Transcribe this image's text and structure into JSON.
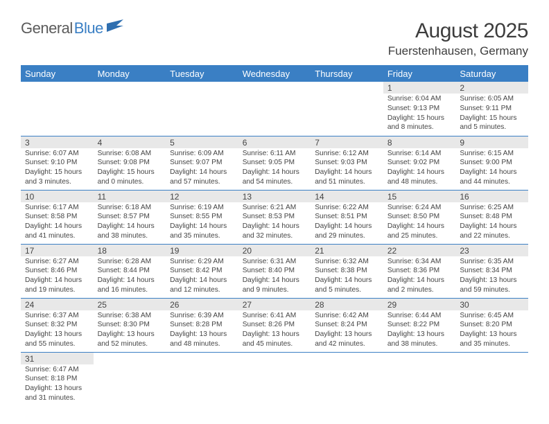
{
  "logo": {
    "text1": "General",
    "text2": "Blue"
  },
  "title": "August 2025",
  "location": "Fuerstenhausen, Germany",
  "colors": {
    "header_bg": "#3a7fc4",
    "header_text": "#ffffff",
    "daynum_bg": "#e8e8e8",
    "rule": "#3a7fc4",
    "body_text": "#444444"
  },
  "weekdays": [
    "Sunday",
    "Monday",
    "Tuesday",
    "Wednesday",
    "Thursday",
    "Friday",
    "Saturday"
  ],
  "weeks": [
    [
      {
        "n": "",
        "sr": "",
        "ss": "",
        "dl": ""
      },
      {
        "n": "",
        "sr": "",
        "ss": "",
        "dl": ""
      },
      {
        "n": "",
        "sr": "",
        "ss": "",
        "dl": ""
      },
      {
        "n": "",
        "sr": "",
        "ss": "",
        "dl": ""
      },
      {
        "n": "",
        "sr": "",
        "ss": "",
        "dl": ""
      },
      {
        "n": "1",
        "sr": "Sunrise: 6:04 AM",
        "ss": "Sunset: 9:13 PM",
        "dl": "Daylight: 15 hours and 8 minutes."
      },
      {
        "n": "2",
        "sr": "Sunrise: 6:05 AM",
        "ss": "Sunset: 9:11 PM",
        "dl": "Daylight: 15 hours and 5 minutes."
      }
    ],
    [
      {
        "n": "3",
        "sr": "Sunrise: 6:07 AM",
        "ss": "Sunset: 9:10 PM",
        "dl": "Daylight: 15 hours and 3 minutes."
      },
      {
        "n": "4",
        "sr": "Sunrise: 6:08 AM",
        "ss": "Sunset: 9:08 PM",
        "dl": "Daylight: 15 hours and 0 minutes."
      },
      {
        "n": "5",
        "sr": "Sunrise: 6:09 AM",
        "ss": "Sunset: 9:07 PM",
        "dl": "Daylight: 14 hours and 57 minutes."
      },
      {
        "n": "6",
        "sr": "Sunrise: 6:11 AM",
        "ss": "Sunset: 9:05 PM",
        "dl": "Daylight: 14 hours and 54 minutes."
      },
      {
        "n": "7",
        "sr": "Sunrise: 6:12 AM",
        "ss": "Sunset: 9:03 PM",
        "dl": "Daylight: 14 hours and 51 minutes."
      },
      {
        "n": "8",
        "sr": "Sunrise: 6:14 AM",
        "ss": "Sunset: 9:02 PM",
        "dl": "Daylight: 14 hours and 48 minutes."
      },
      {
        "n": "9",
        "sr": "Sunrise: 6:15 AM",
        "ss": "Sunset: 9:00 PM",
        "dl": "Daylight: 14 hours and 44 minutes."
      }
    ],
    [
      {
        "n": "10",
        "sr": "Sunrise: 6:17 AM",
        "ss": "Sunset: 8:58 PM",
        "dl": "Daylight: 14 hours and 41 minutes."
      },
      {
        "n": "11",
        "sr": "Sunrise: 6:18 AM",
        "ss": "Sunset: 8:57 PM",
        "dl": "Daylight: 14 hours and 38 minutes."
      },
      {
        "n": "12",
        "sr": "Sunrise: 6:19 AM",
        "ss": "Sunset: 8:55 PM",
        "dl": "Daylight: 14 hours and 35 minutes."
      },
      {
        "n": "13",
        "sr": "Sunrise: 6:21 AM",
        "ss": "Sunset: 8:53 PM",
        "dl": "Daylight: 14 hours and 32 minutes."
      },
      {
        "n": "14",
        "sr": "Sunrise: 6:22 AM",
        "ss": "Sunset: 8:51 PM",
        "dl": "Daylight: 14 hours and 29 minutes."
      },
      {
        "n": "15",
        "sr": "Sunrise: 6:24 AM",
        "ss": "Sunset: 8:50 PM",
        "dl": "Daylight: 14 hours and 25 minutes."
      },
      {
        "n": "16",
        "sr": "Sunrise: 6:25 AM",
        "ss": "Sunset: 8:48 PM",
        "dl": "Daylight: 14 hours and 22 minutes."
      }
    ],
    [
      {
        "n": "17",
        "sr": "Sunrise: 6:27 AM",
        "ss": "Sunset: 8:46 PM",
        "dl": "Daylight: 14 hours and 19 minutes."
      },
      {
        "n": "18",
        "sr": "Sunrise: 6:28 AM",
        "ss": "Sunset: 8:44 PM",
        "dl": "Daylight: 14 hours and 16 minutes."
      },
      {
        "n": "19",
        "sr": "Sunrise: 6:29 AM",
        "ss": "Sunset: 8:42 PM",
        "dl": "Daylight: 14 hours and 12 minutes."
      },
      {
        "n": "20",
        "sr": "Sunrise: 6:31 AM",
        "ss": "Sunset: 8:40 PM",
        "dl": "Daylight: 14 hours and 9 minutes."
      },
      {
        "n": "21",
        "sr": "Sunrise: 6:32 AM",
        "ss": "Sunset: 8:38 PM",
        "dl": "Daylight: 14 hours and 5 minutes."
      },
      {
        "n": "22",
        "sr": "Sunrise: 6:34 AM",
        "ss": "Sunset: 8:36 PM",
        "dl": "Daylight: 14 hours and 2 minutes."
      },
      {
        "n": "23",
        "sr": "Sunrise: 6:35 AM",
        "ss": "Sunset: 8:34 PM",
        "dl": "Daylight: 13 hours and 59 minutes."
      }
    ],
    [
      {
        "n": "24",
        "sr": "Sunrise: 6:37 AM",
        "ss": "Sunset: 8:32 PM",
        "dl": "Daylight: 13 hours and 55 minutes."
      },
      {
        "n": "25",
        "sr": "Sunrise: 6:38 AM",
        "ss": "Sunset: 8:30 PM",
        "dl": "Daylight: 13 hours and 52 minutes."
      },
      {
        "n": "26",
        "sr": "Sunrise: 6:39 AM",
        "ss": "Sunset: 8:28 PM",
        "dl": "Daylight: 13 hours and 48 minutes."
      },
      {
        "n": "27",
        "sr": "Sunrise: 6:41 AM",
        "ss": "Sunset: 8:26 PM",
        "dl": "Daylight: 13 hours and 45 minutes."
      },
      {
        "n": "28",
        "sr": "Sunrise: 6:42 AM",
        "ss": "Sunset: 8:24 PM",
        "dl": "Daylight: 13 hours and 42 minutes."
      },
      {
        "n": "29",
        "sr": "Sunrise: 6:44 AM",
        "ss": "Sunset: 8:22 PM",
        "dl": "Daylight: 13 hours and 38 minutes."
      },
      {
        "n": "30",
        "sr": "Sunrise: 6:45 AM",
        "ss": "Sunset: 8:20 PM",
        "dl": "Daylight: 13 hours and 35 minutes."
      }
    ],
    [
      {
        "n": "31",
        "sr": "Sunrise: 6:47 AM",
        "ss": "Sunset: 8:18 PM",
        "dl": "Daylight: 13 hours and 31 minutes."
      },
      {
        "n": "",
        "sr": "",
        "ss": "",
        "dl": ""
      },
      {
        "n": "",
        "sr": "",
        "ss": "",
        "dl": ""
      },
      {
        "n": "",
        "sr": "",
        "ss": "",
        "dl": ""
      },
      {
        "n": "",
        "sr": "",
        "ss": "",
        "dl": ""
      },
      {
        "n": "",
        "sr": "",
        "ss": "",
        "dl": ""
      },
      {
        "n": "",
        "sr": "",
        "ss": "",
        "dl": ""
      }
    ]
  ]
}
